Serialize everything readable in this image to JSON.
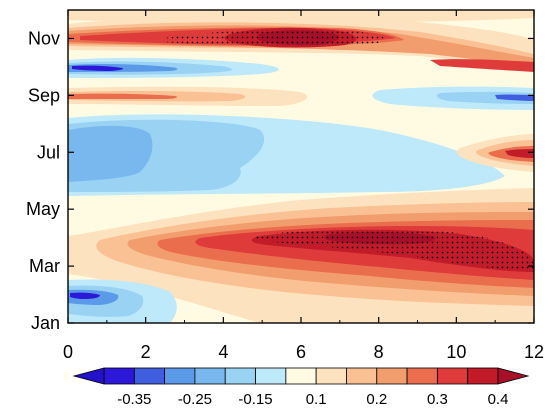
{
  "chart_data": {
    "type": "heatmap",
    "title": "",
    "xlabel": "",
    "ylabel": "",
    "x_ticks": [
      "0",
      "2",
      "4",
      "6",
      "8",
      "10",
      "12"
    ],
    "y_ticks": [
      "Jan",
      "Mar",
      "May",
      "Jul",
      "Sep",
      "Nov"
    ],
    "xlim": [
      0,
      12
    ],
    "ylim": [
      "Jan",
      "Dec"
    ],
    "colorbar": {
      "levels": [
        -0.4,
        -0.35,
        -0.3,
        -0.25,
        -0.2,
        -0.15,
        -0.1,
        0.1,
        0.15,
        0.2,
        0.25,
        0.3,
        0.35,
        0.4
      ],
      "labels": [
        "-0.35",
        "-0.25",
        "-0.15",
        "0.1",
        "0.2",
        "0.3",
        "0.4"
      ],
      "colors": [
        "#2b18d8",
        "#3f5fe0",
        "#5a9ae8",
        "#79b8ee",
        "#9ad2f4",
        "#bde9fb",
        "#fffbe2",
        "#fde2bf",
        "#f9c194",
        "#f29d6e",
        "#ea6e4e",
        "#df3b3b",
        "#c21c2b"
      ],
      "over_color": "#a8102a",
      "under_color": "#2413c8"
    },
    "features": [
      {
        "label": "Nov positive band",
        "month": "Nov",
        "x_range": [
          0,
          12
        ],
        "peak_x": 6.5,
        "peak_value": 0.4,
        "significant": true
      },
      {
        "label": "Oct negative band",
        "month": "Oct",
        "x_range": [
          0,
          4
        ],
        "peak_x": 1,
        "peak_value": -0.35
      },
      {
        "label": "Sep positive band",
        "month": "Sep",
        "x_range": [
          0,
          4
        ],
        "peak_x": 1.5,
        "peak_value": 0.2
      },
      {
        "label": "Sep negative band",
        "month": "Sep",
        "x_range": [
          8,
          12
        ],
        "peak_x": 12,
        "peak_value": -0.35
      },
      {
        "label": "Jul negative region",
        "month": "Jul",
        "x_range": [
          0,
          9
        ],
        "peak_x": 1,
        "peak_value": -0.2
      },
      {
        "label": "Jul positive patch",
        "month": "Jul",
        "x_range": [
          10.5,
          12
        ],
        "peak_x": 12,
        "peak_value": 0.35
      },
      {
        "label": "Mar-Apr positive band",
        "month": "Mar-Apr",
        "x_range": [
          1,
          12
        ],
        "peak_x": 8,
        "peak_value": 0.4,
        "significant": true
      },
      {
        "label": "Feb negative patch",
        "month": "Feb",
        "x_range": [
          0,
          3
        ],
        "peak_x": 0.5,
        "peak_value": -0.35
      }
    ],
    "grid": false,
    "legend": "bottom colorbar"
  }
}
